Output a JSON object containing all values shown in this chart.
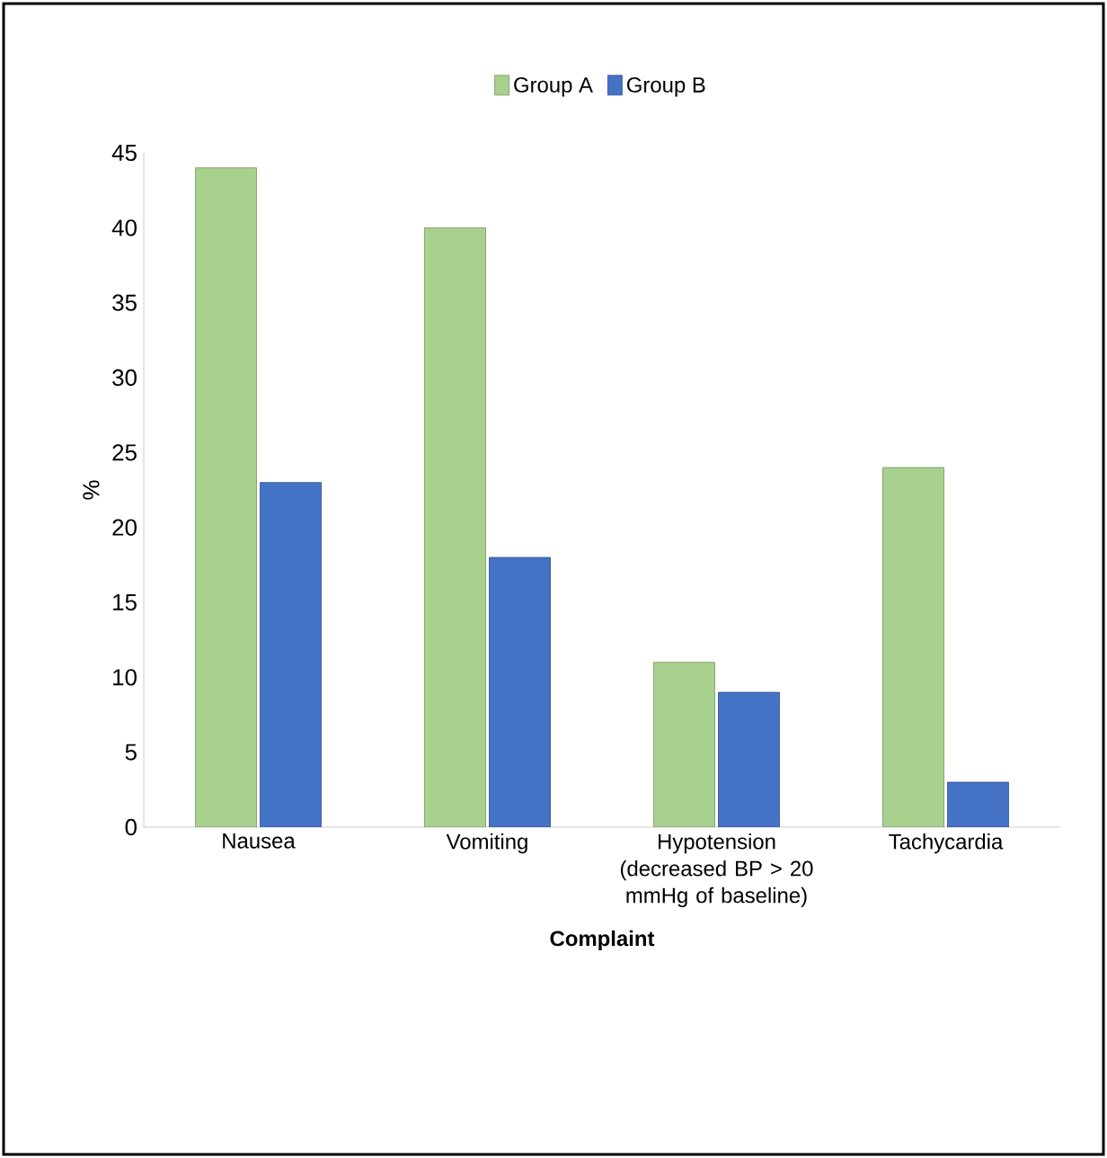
{
  "chart_data": {
    "type": "bar",
    "xlabel": "Complaint",
    "ylabel": "%",
    "categories": [
      "Nausea",
      "Vomiting",
      "Hypotension (decreased BP > 20 mmHg of baseline)",
      "Tachycardia"
    ],
    "series": [
      {
        "name": "Group A",
        "color": "#a9d18e",
        "values": [
          44,
          40,
          11,
          24
        ]
      },
      {
        "name": "Group B",
        "color": "#4472c4",
        "values": [
          23,
          18,
          9,
          3
        ]
      }
    ],
    "ylim": [
      0,
      45
    ],
    "yticks": [
      0,
      5,
      10,
      15,
      20,
      25,
      30,
      35,
      40,
      45
    ],
    "grid": false,
    "legend": "top"
  }
}
